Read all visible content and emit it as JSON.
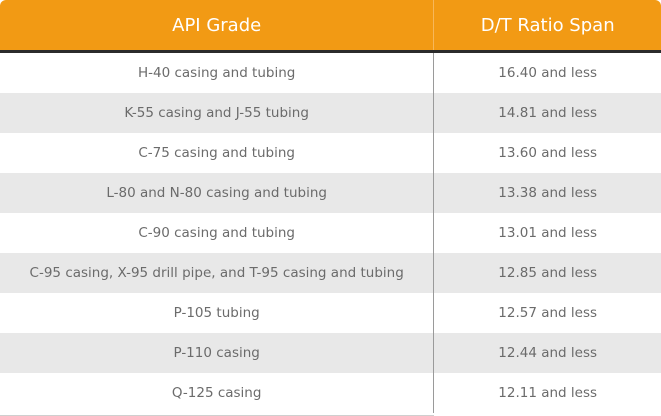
{
  "header": {
    "col_grade": "API Grade",
    "col_ratio": "D/T Ratio Span"
  },
  "rows": [
    {
      "grade": "H-40 casing and tubing",
      "ratio": "16.40 and less"
    },
    {
      "grade": "K-55 casing and J-55 tubing",
      "ratio": "14.81 and less"
    },
    {
      "grade": "C-75 casing and tubing",
      "ratio": "13.60 and less"
    },
    {
      "grade": "L-80 and N-80 casing and tubing",
      "ratio": "13.38 and less"
    },
    {
      "grade": "C-90 casing and tubing",
      "ratio": "13.01 and less"
    },
    {
      "grade": "C-95 casing, X-95 drill pipe, and T-95 casing and tubing",
      "ratio": "12.85 and less"
    },
    {
      "grade": "P-105 tubing",
      "ratio": "12.57 and less"
    },
    {
      "grade": "P-110 casing",
      "ratio": "12.44 and less"
    },
    {
      "grade": "Q-125 casing",
      "ratio": "12.11 and less"
    }
  ],
  "colors": {
    "header_bg": "#f29a14",
    "header_text": "#ffffff",
    "row_alt_bg": "#e8e8e8",
    "body_text": "#6b6b6b"
  }
}
